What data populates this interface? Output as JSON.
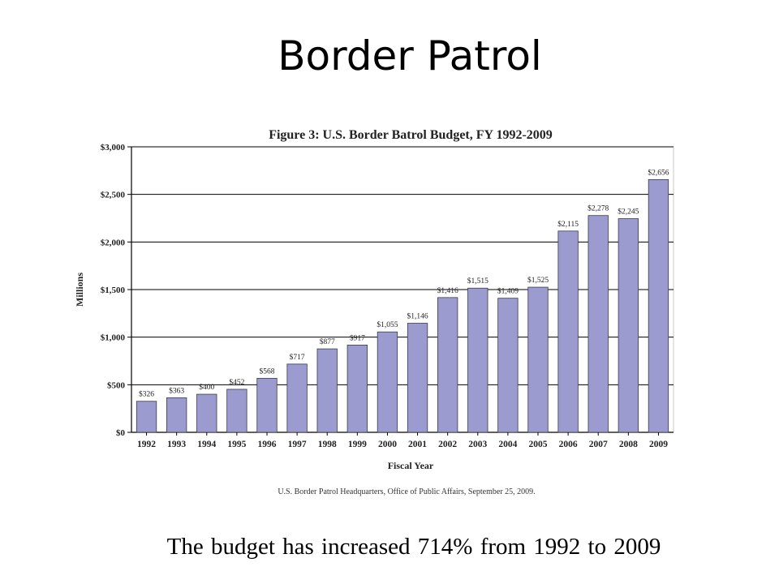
{
  "slide": {
    "title": "Border Patrol",
    "caption": "The budget has increased  714%  from 1992 to 2009"
  },
  "colors": {
    "bar": "#9b9bcf",
    "bar_stroke": "#3a3a4a",
    "grid": "#000000"
  },
  "chart_data": {
    "type": "bar",
    "title": "Figure 3: U.S. Border Batrol Budget, FY 1992-2009",
    "xlabel": "Fiscal Year",
    "ylabel": "Millions",
    "source": "U.S. Border Patrol Headquarters, Office of Public Affairs, September 25, 2009.",
    "categories": [
      "1992",
      "1993",
      "1994",
      "1995",
      "1996",
      "1997",
      "1998",
      "1999",
      "2000",
      "2001",
      "2002",
      "2003",
      "2004",
      "2005",
      "2006",
      "2007",
      "2008",
      "2009"
    ],
    "values": [
      326,
      363,
      400,
      452,
      568,
      717,
      877,
      917,
      1055,
      1146,
      1416,
      1515,
      1409,
      1525,
      2115,
      2278,
      2245,
      2656
    ],
    "data_labels": [
      "$326",
      "$363",
      "$400",
      "$452",
      "$568",
      "$717",
      "$877",
      "$917",
      "$1,055",
      "$1,146",
      "$1,416",
      "$1,515",
      "$1,409",
      "$1,525",
      "$2,115",
      "$2,278",
      "$2,245",
      "$2,656"
    ],
    "yticks": [
      0,
      500,
      1000,
      1500,
      2000,
      2500,
      3000
    ],
    "ytick_labels": [
      "$0",
      "$500",
      "$1,000",
      "$1,500",
      "$2,000",
      "$2,500",
      "$3,000"
    ],
    "ylim": [
      0,
      3000
    ],
    "grid": true,
    "legend": "none"
  }
}
